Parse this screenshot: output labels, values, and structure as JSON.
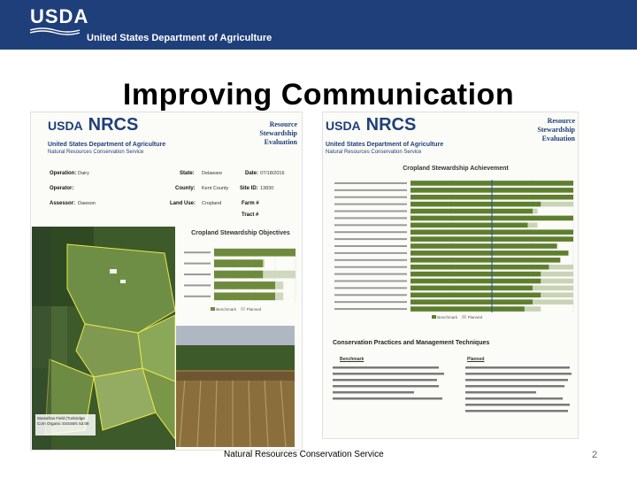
{
  "header": {
    "logo_text": "USDA",
    "department": "United States Department of Agriculture"
  },
  "slide": {
    "title": "Improving Communication",
    "footer": "Natural Resources Conservation Service",
    "page_number": "2"
  },
  "left_report": {
    "usda": "USDA",
    "nrcs": "NRCS",
    "agency_line1": "United States Department of Agriculture",
    "agency_line2": "Natural Resources Conservation Service",
    "rse_title": [
      "Resource",
      "Stewardship",
      "Evaluation"
    ],
    "fields": [
      {
        "label": "Operation:",
        "value": "Dairy"
      },
      {
        "label": "Operator:",
        "value": ""
      },
      {
        "label": "Assessor:",
        "value": "Dawson"
      },
      {
        "label": "State:",
        "value": "Delaware"
      },
      {
        "label": "County:",
        "value": "Kent County"
      },
      {
        "label": "Land Use:",
        "value": "Cropland"
      },
      {
        "label": "Date:",
        "value": "07/18/2016"
      },
      {
        "label": "Site ID:",
        "value": "13830"
      },
      {
        "label": "Farm #",
        "value": ""
      },
      {
        "label": "Tract #",
        "value": ""
      }
    ],
    "map_label": [
      "Sassafras Field (Tunbridge",
      "Corn Organic SSSS9/c 53.08"
    ],
    "objectives_chart": {
      "title": "Cropland Stewardship Objectives",
      "legend": [
        "Benchmark",
        "Planned"
      ]
    }
  },
  "right_report": {
    "usda": "USDA",
    "nrcs": "NRCS",
    "agency_line1": "United States Department of Agriculture",
    "agency_line2": "Natural Resources Conservation Service",
    "rse_title": [
      "Resource",
      "Stewardship",
      "Evaluation"
    ],
    "achievement_chart": {
      "title": "Cropland Stewardship Achievement",
      "legend": [
        "Benchmark",
        "Planned"
      ]
    },
    "practices": {
      "title": "Conservation Practices and Management Techniques",
      "col_benchmark": "Benchmark",
      "col_planned": "Planned"
    }
  },
  "chart_data": [
    {
      "type": "bar",
      "title": "Cropland Stewardship Objectives",
      "orientation": "horizontal",
      "categories": [
        "Soil Health",
        "Water Quality",
        "Water Quantity",
        "Air Quality",
        "Habitat Quality"
      ],
      "series": [
        {
          "name": "Benchmark",
          "values": [
            100,
            60,
            60,
            75,
            75
          ],
          "color": "#6e8b3d"
        },
        {
          "name": "Planned",
          "values": [
            100,
            62,
            100,
            85,
            85
          ],
          "color": "#d0d8c0"
        }
      ],
      "xlim": [
        0,
        100
      ]
    },
    {
      "type": "bar",
      "title": "Cropland Stewardship Achievement",
      "orientation": "horizontal",
      "series": [
        {
          "name": "Benchmark",
          "values": [
            100,
            100,
            100,
            80,
            75,
            100,
            72,
            100,
            100,
            90,
            97,
            92,
            85,
            80,
            80,
            75,
            80,
            75,
            70
          ],
          "color": "#5e7f2e"
        },
        {
          "name": "Planned",
          "values": [
            100,
            100,
            100,
            100,
            78,
            100,
            78,
            100,
            100,
            90,
            97,
            92,
            100,
            100,
            100,
            100,
            100,
            100,
            80
          ],
          "color": "#c9d3b6"
        }
      ],
      "xlim": [
        0,
        100
      ]
    }
  ]
}
